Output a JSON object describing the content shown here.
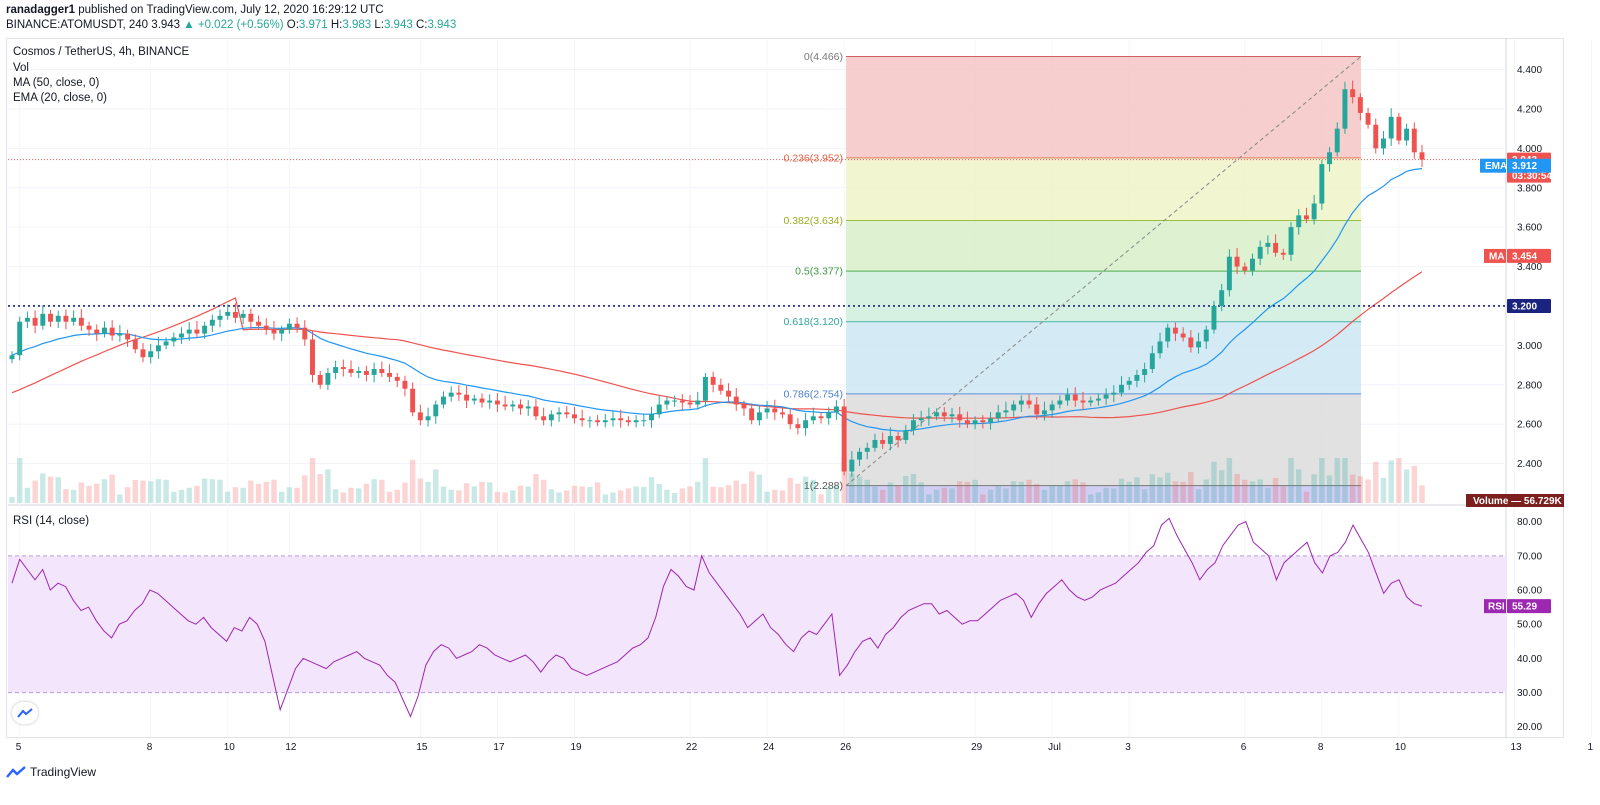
{
  "header": {
    "author": "ranadagger1",
    "published_text": "published on TradingView.com, July 12, 2020 16:29:12 UTC",
    "symbol": "BINANCE:ATOMUSDT, 240",
    "last": "3.943",
    "change": "+0.022 (+0.56%)",
    "o_label": "O:",
    "o_val": "3.971",
    "h_label": "H:",
    "h_val": "3.983",
    "l_label": "L:",
    "l_val": "3.943",
    "c_label": "C:",
    "c_val": "3.943"
  },
  "legend": {
    "title": "Cosmos / TetherUS, 4h, BINANCE",
    "vol": "Vol",
    "ma": "MA (50, close, 0)",
    "ema": "EMA (20, close, 0)",
    "rsi": "RSI (14, close)"
  },
  "brand": "TradingView",
  "colors": {
    "up": "#26a69a",
    "down": "#ef5350",
    "ma": "#ef5350",
    "ema": "#2196f3",
    "rsi": "#9c27b0",
    "level": "#1a237e",
    "price_tag": "#ef5350",
    "volume_tag": "#7b1f1f"
  },
  "chart_data": [
    {
      "type": "candlestick",
      "title": "Cosmos / TetherUS, 4h, BINANCE",
      "x_ticks": [
        "5",
        "8",
        "10",
        "12",
        "15",
        "17",
        "19",
        "22",
        "24",
        "26",
        "29",
        "Jul",
        "3",
        "6",
        "8",
        "10",
        "13",
        "1"
      ],
      "y_ticks": [
        "4.400",
        "4.200",
        "4.000",
        "3.800",
        "3.600",
        "3.400",
        "3.200",
        "3.000",
        "2.800",
        "2.600",
        "2.400"
      ],
      "ylim": [
        2.2,
        4.55
      ],
      "candles_close": [
        2.95,
        3.12,
        3.14,
        3.1,
        3.16,
        3.12,
        3.15,
        3.12,
        3.14,
        3.1,
        3.08,
        3.06,
        3.09,
        3.05,
        3.06,
        3.03,
        2.98,
        2.94,
        2.97,
        3.0,
        3.02,
        3.04,
        3.06,
        3.08,
        3.06,
        3.1,
        3.13,
        3.15,
        3.17,
        3.14,
        3.16,
        3.12,
        3.1,
        3.08,
        3.06,
        3.08,
        3.11,
        3.09,
        3.03,
        2.85,
        2.8,
        2.86,
        2.89,
        2.88,
        2.86,
        2.87,
        2.85,
        2.88,
        2.86,
        2.84,
        2.82,
        2.78,
        2.66,
        2.62,
        2.64,
        2.7,
        2.74,
        2.76,
        2.75,
        2.72,
        2.73,
        2.71,
        2.72,
        2.7,
        2.69,
        2.7,
        2.68,
        2.69,
        2.64,
        2.62,
        2.65,
        2.66,
        2.65,
        2.63,
        2.62,
        2.62,
        2.61,
        2.62,
        2.63,
        2.62,
        2.61,
        2.62,
        2.62,
        2.65,
        2.7,
        2.72,
        2.72,
        2.71,
        2.7,
        2.72,
        2.84,
        2.8,
        2.77,
        2.74,
        2.7,
        2.68,
        2.62,
        2.66,
        2.68,
        2.66,
        2.65,
        2.6,
        2.58,
        2.62,
        2.64,
        2.63,
        2.66,
        2.69,
        2.36,
        2.42,
        2.46,
        2.48,
        2.52,
        2.5,
        2.54,
        2.52,
        2.57,
        2.62,
        2.63,
        2.64,
        2.66,
        2.64,
        2.65,
        2.62,
        2.6,
        2.62,
        2.61,
        2.63,
        2.66,
        2.67,
        2.7,
        2.72,
        2.7,
        2.65,
        2.67,
        2.7,
        2.72,
        2.75,
        2.72,
        2.71,
        2.72,
        2.73,
        2.75,
        2.76,
        2.8,
        2.82,
        2.85,
        2.88,
        2.96,
        3.02,
        3.09,
        3.06,
        3.04,
        2.99,
        3.02,
        3.08,
        3.2,
        3.28,
        3.45,
        3.4,
        3.38,
        3.44,
        3.5,
        3.52,
        3.47,
        3.46,
        3.6,
        3.66,
        3.64,
        3.72,
        3.92,
        3.98,
        4.1,
        4.3,
        4.26,
        4.18,
        4.12,
        4.0,
        4.05,
        4.16,
        4.04,
        4.1,
        3.98,
        3.943
      ],
      "ma_label": "MA",
      "ma_value": "3.454",
      "ema_label": "EMA",
      "ema_value": "3.912",
      "last_price": "3.943",
      "countdown": "03:30:54",
      "level_price": "3.200",
      "level_value": 3.2,
      "volume_label": "Volume",
      "volume_value": "56.729K"
    },
    {
      "type": "fibonacci_retracement",
      "levels": [
        {
          "ratio": 0,
          "price": 4.466,
          "label": "0(4.466)"
        },
        {
          "ratio": 0.236,
          "price": 3.952,
          "label": "0.236(3.952)"
        },
        {
          "ratio": 0.382,
          "price": 3.634,
          "label": "0.382(3.634)"
        },
        {
          "ratio": 0.5,
          "price": 3.377,
          "label": "0.5(3.377)"
        },
        {
          "ratio": 0.618,
          "price": 3.12,
          "label": "0.618(3.120)"
        },
        {
          "ratio": 0.786,
          "price": 2.754,
          "label": "0.786(2.754)"
        },
        {
          "ratio": 1,
          "price": 2.288,
          "label": "1(2.288)"
        }
      ]
    },
    {
      "type": "line",
      "title": "RSI (14, close)",
      "ylim": [
        17,
        84
      ],
      "y_ticks": [
        "80.00",
        "70.00",
        "60.00",
        "50.00",
        "40.00",
        "30.00",
        "20.00"
      ],
      "band": [
        30,
        70
      ],
      "values": [
        62,
        69,
        66,
        63,
        66,
        60,
        62,
        61,
        57,
        54,
        55,
        51,
        48,
        46,
        50,
        51,
        54,
        56,
        60,
        59,
        57,
        55,
        53,
        51,
        50,
        52,
        49,
        47,
        45,
        49,
        48,
        52,
        50,
        45,
        35,
        25,
        31,
        37,
        40,
        39,
        38,
        37,
        39,
        40,
        41,
        42,
        40,
        39,
        38,
        35,
        33,
        28,
        23,
        29,
        38,
        42,
        44,
        43,
        40,
        41,
        42,
        44,
        43,
        41,
        40,
        39,
        40,
        41,
        39,
        36,
        39,
        41,
        40,
        37,
        36,
        35,
        36,
        37,
        38,
        39,
        41,
        43,
        44,
        46,
        52,
        61,
        66,
        64,
        61,
        60,
        70,
        65,
        62,
        59,
        56,
        53,
        49,
        51,
        53,
        49,
        47,
        44,
        42,
        46,
        48,
        47,
        50,
        53,
        35,
        38,
        42,
        45,
        46,
        43,
        47,
        49,
        52,
        54,
        55,
        56,
        56,
        53,
        54,
        52,
        50,
        51,
        51,
        53,
        55,
        57,
        58,
        59,
        57,
        52,
        56,
        59,
        61,
        63,
        60,
        58,
        57,
        58,
        60,
        61,
        62,
        64,
        66,
        68,
        71,
        73,
        79,
        81,
        76,
        72,
        68,
        63,
        66,
        68,
        73,
        76,
        79,
        80,
        74,
        72,
        70,
        63,
        68,
        70,
        72,
        74,
        68,
        65,
        70,
        71,
        74,
        79,
        75,
        71,
        65,
        59,
        62,
        63,
        58,
        56,
        55.29
      ],
      "rsi_label": "RSI",
      "rsi_value": "55.29"
    }
  ]
}
